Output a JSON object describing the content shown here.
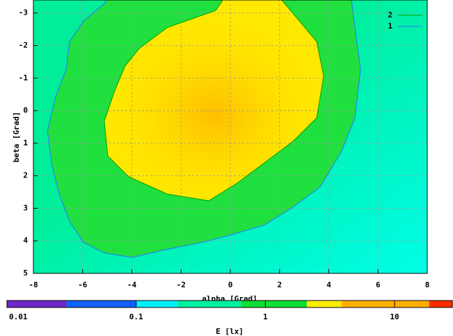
{
  "chart_data": {
    "type": "contour",
    "xlabel": "alpha [Grad]",
    "ylabel": "beta [Grad]",
    "xlim": [
      -8,
      8
    ],
    "ylim": [
      -3.4,
      5
    ],
    "y_reversed": true,
    "xticks": [
      -8,
      -6,
      -4,
      -2,
      0,
      2,
      4,
      6,
      8
    ],
    "yticks": [
      -3,
      -2,
      -1,
      0,
      1,
      2,
      3,
      4,
      5
    ],
    "grid": true,
    "background": "#00ee99",
    "legend": "top-right",
    "series": [
      {
        "name": "2",
        "color": "#00a000",
        "fill": "#ffe800",
        "x": [
          -0.31,
          -0.59,
          -2.57,
          -3.7,
          -4.27,
          -4.69,
          -5.12,
          -4.98,
          -4.13,
          -2.57,
          -0.88,
          0.25,
          1.39,
          2.52,
          3.51,
          3.79,
          3.51,
          2.8,
          2.09
        ],
        "y": [
          -3.4,
          -3.08,
          -2.55,
          -1.91,
          -1.38,
          -0.63,
          0.32,
          1.39,
          2.03,
          2.56,
          2.77,
          2.24,
          1.6,
          0.96,
          0.22,
          -1.06,
          -2.12,
          -2.76,
          -3.4
        ]
      },
      {
        "name": "1",
        "color": "#3070ff",
        "fill": "#20e040",
        "x": [
          -5.03,
          -5.12,
          -5.96,
          -6.53,
          -6.67,
          -7.1,
          -7.43,
          -7.24,
          -6.95,
          -6.53,
          -5.96,
          -5.12,
          -3.99,
          -2.57,
          -1.16,
          -0.03,
          1.39,
          2.52,
          3.65,
          4.5,
          5.06,
          5.29,
          5.06,
          4.92
        ],
        "y": [
          -3.4,
          -3.29,
          -2.76,
          -2.12,
          -1.27,
          -0.42,
          0.64,
          1.71,
          2.56,
          3.41,
          4.05,
          4.37,
          4.51,
          4.26,
          4.05,
          3.83,
          3.51,
          2.98,
          2.34,
          1.28,
          0.22,
          -1.27,
          -2.55,
          -3.4
        ]
      }
    ],
    "colorbar": {
      "label": "E [lx]",
      "log": true,
      "lim": [
        0.01,
        28
      ],
      "ticks": [
        {
          "value": 0.01,
          "label": "0.01"
        },
        {
          "value": 0.1,
          "label": "0.1"
        },
        1,
        10
      ],
      "levels": [
        0.01,
        0.029,
        0.1,
        0.21,
        0.65,
        2.1,
        3.9,
        18.6,
        28
      ],
      "colors": [
        "#6a28c8",
        "#1060ff",
        "#00f0ff",
        "#00f0a0",
        "#10e030",
        "#ffee00",
        "#ffb000",
        "#ff2a00"
      ]
    }
  }
}
